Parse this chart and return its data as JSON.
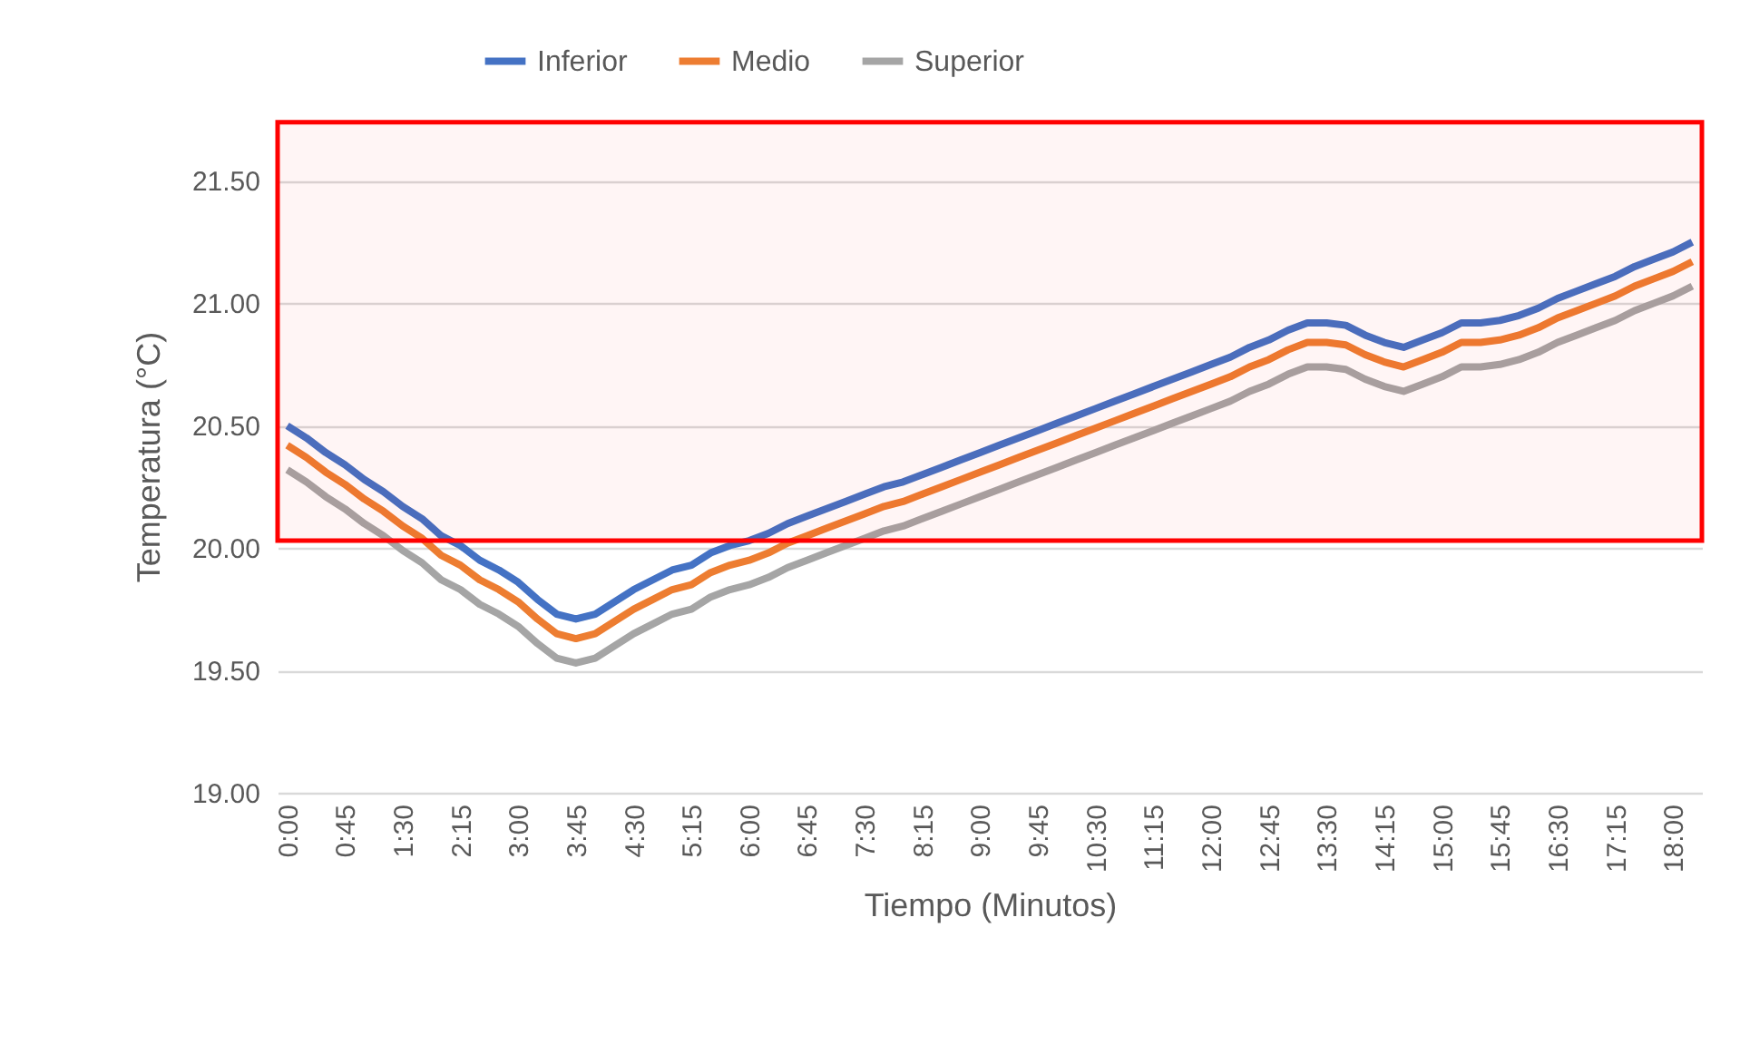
{
  "chart_data": {
    "type": "line",
    "xlabel": "Tiempo (Minutos)",
    "ylabel": "Temperatura (°C)",
    "categories": [
      "0:00",
      null,
      null,
      "0:45",
      null,
      null,
      "1:30",
      null,
      null,
      "2:15",
      null,
      null,
      "3:00",
      null,
      null,
      "3:45",
      null,
      null,
      "4:30",
      null,
      null,
      "5:15",
      null,
      null,
      "6:00",
      null,
      null,
      "6:45",
      null,
      null,
      "7:30",
      null,
      null,
      "8:15",
      null,
      null,
      "9:00",
      null,
      null,
      "9:45",
      null,
      null,
      "10:30",
      null,
      null,
      "11:15",
      null,
      null,
      "12:00",
      null,
      null,
      "12:45",
      null,
      null,
      "13:30",
      null,
      null,
      "14:15",
      null,
      null,
      "15:00",
      null,
      null,
      "15:45",
      null,
      null,
      "16:30",
      null,
      null,
      "17:15",
      null,
      null,
      "18:00",
      null
    ],
    "series": [
      {
        "name": "Inferior",
        "color": "#4472c4",
        "values": [
          20.5,
          20.45,
          20.39,
          20.34,
          20.28,
          20.23,
          20.17,
          20.12,
          20.05,
          20.01,
          19.95,
          19.91,
          19.86,
          19.79,
          19.73,
          19.71,
          19.73,
          19.78,
          19.83,
          19.87,
          19.91,
          19.93,
          19.98,
          20.01,
          20.03,
          20.06,
          20.1,
          20.13,
          20.16,
          20.19,
          20.22,
          20.25,
          20.27,
          20.3,
          20.33,
          20.36,
          20.39,
          20.42,
          20.45,
          20.48,
          20.51,
          20.54,
          20.57,
          20.6,
          20.63,
          20.66,
          20.69,
          20.72,
          20.75,
          20.78,
          20.82,
          20.85,
          20.89,
          20.92,
          20.92,
          20.91,
          20.87,
          20.84,
          20.82,
          20.85,
          20.88,
          20.92,
          20.92,
          20.93,
          20.95,
          20.98,
          21.02,
          21.05,
          21.08,
          21.11,
          21.15,
          21.18,
          21.21,
          21.25
        ]
      },
      {
        "name": "Medio",
        "color": "#ed7d31",
        "values": [
          20.42,
          20.37,
          20.31,
          20.26,
          20.2,
          20.15,
          20.09,
          20.04,
          19.97,
          19.93,
          19.87,
          19.83,
          19.78,
          19.71,
          19.65,
          19.63,
          19.65,
          19.7,
          19.75,
          19.79,
          19.83,
          19.85,
          19.9,
          19.93,
          19.95,
          19.98,
          20.02,
          20.05,
          20.08,
          20.11,
          20.14,
          20.17,
          20.19,
          20.22,
          20.25,
          20.28,
          20.31,
          20.34,
          20.37,
          20.4,
          20.43,
          20.46,
          20.49,
          20.52,
          20.55,
          20.58,
          20.61,
          20.64,
          20.67,
          20.7,
          20.74,
          20.77,
          20.81,
          20.84,
          20.84,
          20.83,
          20.79,
          20.76,
          20.74,
          20.77,
          20.8,
          20.84,
          20.84,
          20.85,
          20.87,
          20.9,
          20.94,
          20.97,
          21.0,
          21.03,
          21.07,
          21.1,
          21.13,
          21.17
        ]
      },
      {
        "name": "Superior",
        "color": "#a5a5a5",
        "values": [
          20.32,
          20.27,
          20.21,
          20.16,
          20.1,
          20.05,
          19.99,
          19.94,
          19.87,
          19.83,
          19.77,
          19.73,
          19.68,
          19.61,
          19.55,
          19.53,
          19.55,
          19.6,
          19.65,
          19.69,
          19.73,
          19.75,
          19.8,
          19.83,
          19.85,
          19.88,
          19.92,
          19.95,
          19.98,
          20.01,
          20.04,
          20.07,
          20.09,
          20.12,
          20.15,
          20.18,
          20.21,
          20.24,
          20.27,
          20.3,
          20.33,
          20.36,
          20.39,
          20.42,
          20.45,
          20.48,
          20.51,
          20.54,
          20.57,
          20.6,
          20.64,
          20.67,
          20.71,
          20.74,
          20.74,
          20.73,
          20.69,
          20.66,
          20.64,
          20.67,
          20.7,
          20.74,
          20.74,
          20.75,
          20.77,
          20.8,
          20.84,
          20.87,
          20.9,
          20.93,
          20.97,
          21.0,
          21.03,
          21.07
        ]
      }
    ],
    "ylim": [
      19,
      21.75
    ],
    "yticks": [
      {
        "value": 19,
        "label": "19.00"
      },
      {
        "value": 19.5,
        "label": "19.50"
      },
      {
        "value": 20,
        "label": "20.00"
      },
      {
        "value": 20.5,
        "label": "20.50"
      },
      {
        "value": 21,
        "label": "21.00"
      },
      {
        "value": 21.5,
        "label": "21.50"
      }
    ],
    "grid": "y",
    "legend": "top",
    "line_style": "solid",
    "bands": [
      {
        "axis": "y",
        "from": 20.03,
        "to": 21.74,
        "color": "#ff0000"
      }
    ]
  }
}
